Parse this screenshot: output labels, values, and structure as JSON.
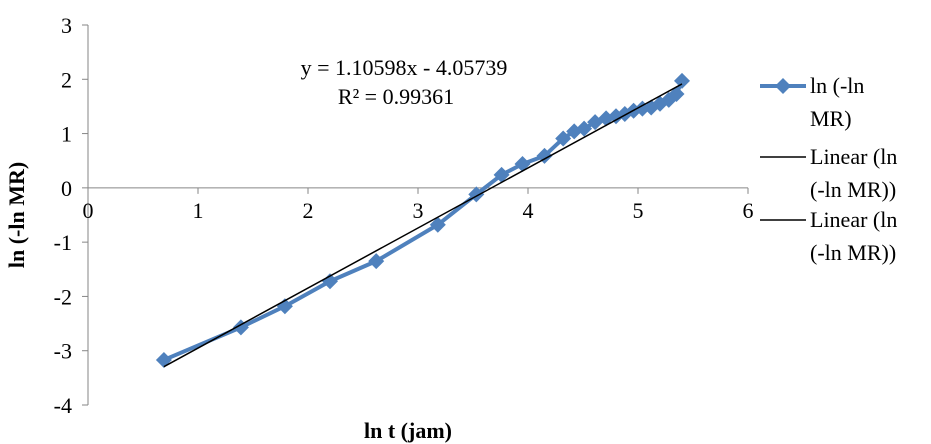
{
  "chart_data": {
    "type": "scatter",
    "xlabel": "ln t (jam)",
    "ylabel": "ln (-ln MR)",
    "xlim": [
      0,
      6
    ],
    "ylim": [
      -4,
      3
    ],
    "x_ticks": [
      "0",
      "1",
      "2",
      "3",
      "4",
      "5",
      "6"
    ],
    "y_ticks": [
      "3",
      "2",
      "1",
      "0",
      "-1",
      "-2",
      "-3",
      "-4"
    ],
    "grid": false,
    "series": [
      {
        "name": "ln (-ln MR)",
        "color": "#4F81BD",
        "marker": "diamond",
        "x": [
          0.69,
          1.39,
          1.79,
          2.2,
          2.62,
          3.18,
          3.53,
          3.76,
          3.95,
          4.15,
          4.32,
          4.42,
          4.51,
          4.61,
          4.71,
          4.8,
          4.88,
          4.96,
          5.04,
          5.12,
          5.2,
          5.28,
          5.35,
          5.4
        ],
        "y": [
          -3.17,
          -2.57,
          -2.18,
          -1.72,
          -1.35,
          -0.68,
          -0.12,
          0.24,
          0.44,
          0.59,
          0.91,
          1.04,
          1.09,
          1.21,
          1.28,
          1.32,
          1.36,
          1.42,
          1.46,
          1.48,
          1.55,
          1.62,
          1.73,
          1.97
        ]
      }
    ],
    "trendline": {
      "color": "#000000",
      "slope": 1.10598,
      "intercept": -4.05739,
      "x_range": [
        0.69,
        5.4
      ]
    },
    "legend": {
      "position": "right",
      "entries": [
        {
          "label_lines": [
            "ln (-ln",
            "MR)"
          ],
          "type": "series"
        },
        {
          "label_lines": [
            "Linear (ln",
            "(-ln MR))"
          ],
          "type": "line"
        },
        {
          "label_lines": [
            "Linear (ln",
            "(-ln MR))"
          ],
          "type": "line"
        }
      ]
    },
    "annotation": {
      "equation": "y = 1.10598x - 4.05739",
      "r2": "R² = 0.99361"
    }
  }
}
